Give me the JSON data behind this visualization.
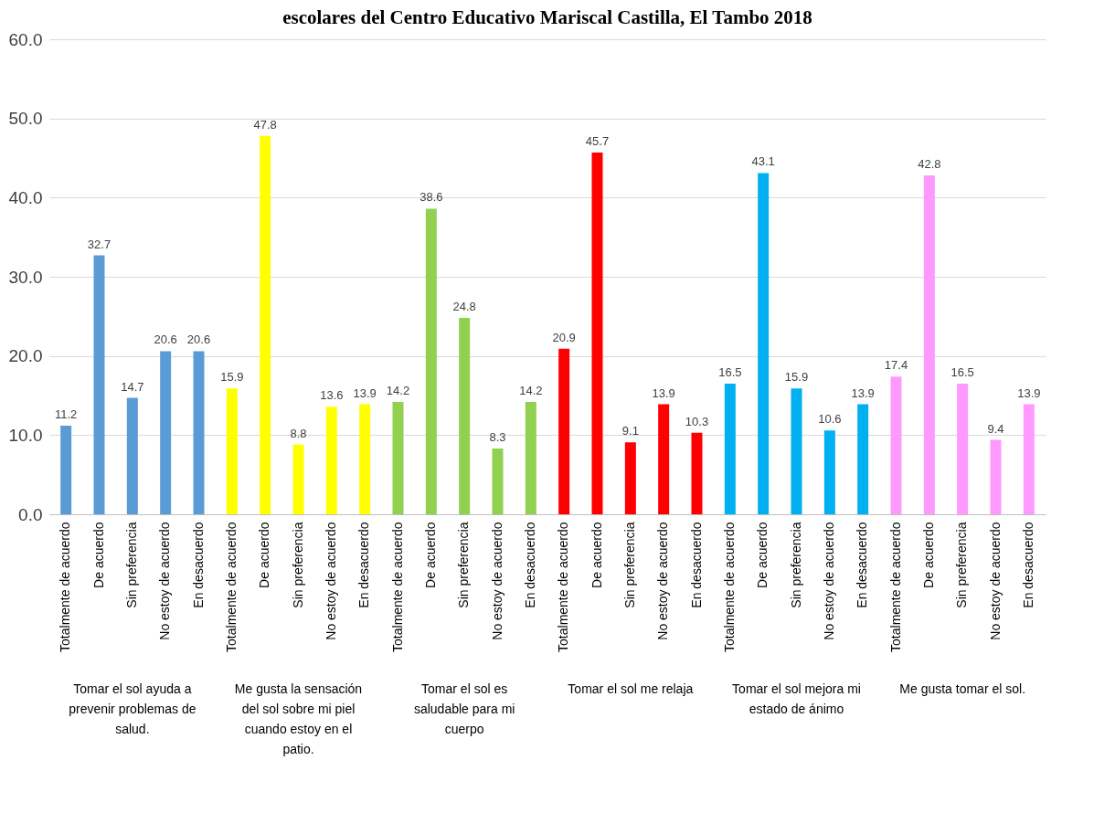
{
  "chart_data": {
    "type": "bar",
    "title": "escolares del Centro Educativo Mariscal Castilla, El Tambo 2018",
    "categories": [
      "Totalmente de acuerdo",
      "De acuerdo",
      "Sin preferencia",
      "No estoy de acuerdo",
      "En desacuerdo",
      "Totalmente de acuerdo",
      "De acuerdo",
      "Sin preferencia",
      "No estoy de acuerdo",
      "En desacuerdo",
      "Totalmente de acuerdo",
      "De acuerdo",
      "Sin preferencia",
      "No estoy de acuerdo",
      "En desacuerdo",
      "Totalmente de acuerdo",
      "De acuerdo",
      "Sin preferencia",
      "No estoy de acuerdo",
      "En desacuerdo",
      "Totalmente de acuerdo",
      "De acuerdo",
      "Sin preferencia",
      "No estoy de acuerdo",
      "En desacuerdo",
      "Totalmente de acuerdo",
      "De acuerdo",
      "Sin preferencia",
      "No estoy de acuerdo",
      "En desacuerdo"
    ],
    "series": [
      {
        "color": "#5b9bd5",
        "values": [
          11.2,
          32.7,
          14.7,
          20.6,
          20.6,
          null,
          null,
          null,
          null,
          null,
          null,
          null,
          null,
          null,
          null,
          null,
          null,
          null,
          null,
          null,
          null,
          null,
          null,
          null,
          null,
          null,
          null,
          null,
          null,
          null
        ]
      },
      {
        "color": "#ffff00",
        "values": [
          null,
          null,
          null,
          null,
          null,
          15.9,
          47.8,
          8.8,
          13.6,
          13.9,
          null,
          null,
          null,
          null,
          null,
          null,
          null,
          null,
          null,
          null,
          null,
          null,
          null,
          null,
          null,
          null,
          null,
          null,
          null,
          null
        ]
      },
      {
        "color": "#92d050",
        "values": [
          null,
          null,
          null,
          null,
          null,
          null,
          null,
          null,
          null,
          null,
          14.2,
          38.6,
          24.8,
          8.3,
          14.2,
          null,
          null,
          null,
          null,
          null,
          null,
          null,
          null,
          null,
          null,
          null,
          null,
          null,
          null,
          null
        ]
      },
      {
        "color": "#ff0000",
        "values": [
          null,
          null,
          null,
          null,
          null,
          null,
          null,
          null,
          null,
          null,
          null,
          null,
          null,
          null,
          null,
          20.9,
          45.7,
          9.1,
          13.9,
          10.3,
          null,
          null,
          null,
          null,
          null,
          null,
          null,
          null,
          null,
          null
        ]
      },
      {
        "color": "#00b0f0",
        "values": [
          null,
          null,
          null,
          null,
          null,
          null,
          null,
          null,
          null,
          null,
          null,
          null,
          null,
          null,
          null,
          null,
          null,
          null,
          null,
          null,
          16.5,
          43.1,
          15.9,
          10.6,
          13.9,
          null,
          null,
          null,
          null,
          null
        ]
      },
      {
        "color": "#ff99ff",
        "values": [
          null,
          null,
          null,
          null,
          null,
          null,
          null,
          null,
          null,
          null,
          null,
          null,
          null,
          null,
          null,
          null,
          null,
          null,
          null,
          null,
          null,
          null,
          null,
          null,
          null,
          17.4,
          42.8,
          16.5,
          9.4,
          13.9
        ]
      }
    ],
    "annotations": [
      "Tomar el sol ayuda a prevenir problemas de salud.",
      "Me gusta la sensación del sol sobre mi piel cuando estoy en el patio.",
      "Tomar el sol es saludable para mi cuerpo",
      "Tomar el sol me relaja",
      "Tomar el sol mejora mi estado de ánimo",
      "Me gusta tomar el sol."
    ],
    "ylim": [
      0,
      60
    ],
    "yticks": [
      {
        "value": 0,
        "label": "0.0"
      },
      {
        "value": 10,
        "label": "10.0"
      },
      {
        "value": 20,
        "label": "20.0"
      },
      {
        "value": 30,
        "label": "30.0"
      },
      {
        "value": 40,
        "label": "40.0"
      },
      {
        "value": 50,
        "label": "50.0"
      },
      {
        "value": 60,
        "label": "60.0"
      }
    ],
    "grid": "y",
    "data_labels": true
  }
}
